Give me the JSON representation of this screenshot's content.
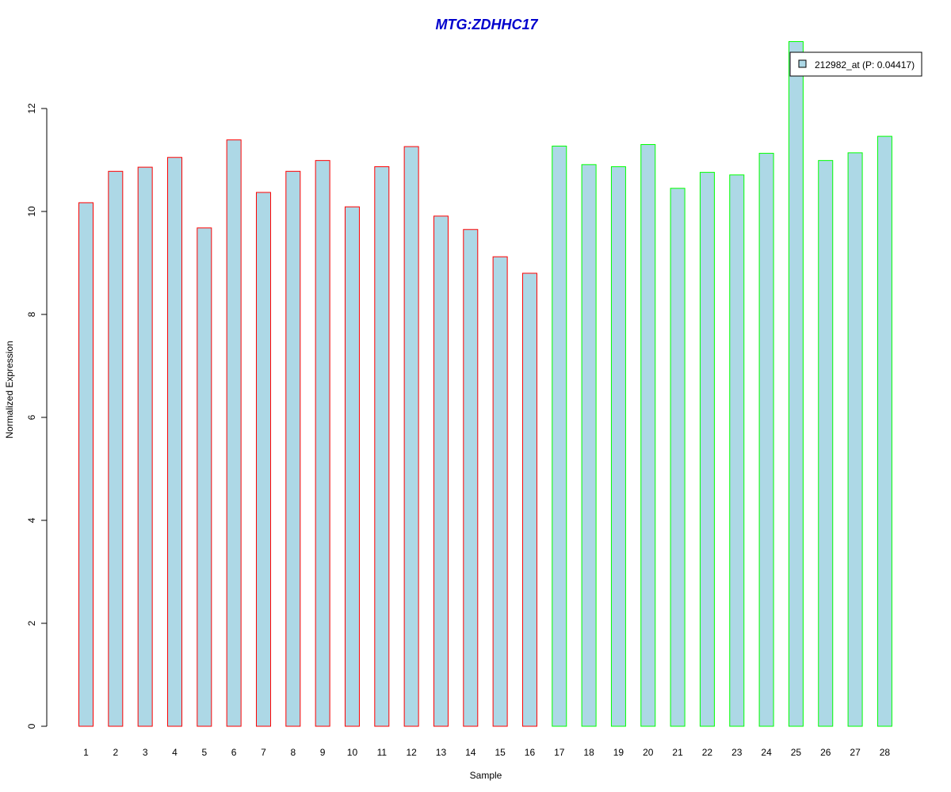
{
  "chart_data": {
    "type": "bar",
    "title": "MTG:ZDHHC17",
    "xlabel": "Sample",
    "ylabel": "Normalized Expression",
    "categories": [
      "1",
      "2",
      "3",
      "4",
      "5",
      "6",
      "7",
      "8",
      "9",
      "10",
      "11",
      "12",
      "13",
      "14",
      "15",
      "16",
      "17",
      "18",
      "19",
      "20",
      "21",
      "22",
      "23",
      "24",
      "25",
      "26",
      "27",
      "28"
    ],
    "series": [
      {
        "name": "212982_at (P: 0.04417)",
        "values": [
          10.17,
          10.78,
          10.86,
          11.05,
          9.68,
          11.39,
          10.37,
          10.78,
          10.99,
          10.09,
          10.87,
          11.26,
          9.91,
          9.65,
          9.12,
          8.8,
          11.27,
          10.91,
          10.87,
          11.3,
          10.45,
          10.76,
          10.71,
          11.13,
          13.3,
          10.99,
          11.14,
          11.46
        ]
      }
    ],
    "yticks": [
      0,
      2,
      4,
      6,
      8,
      10,
      12
    ],
    "ylim": [
      0,
      13.3
    ],
    "grid": false,
    "legend_position": "top-right",
    "colors": {
      "bar_fill": "#add8e6",
      "group1_border": "#ff0000",
      "group2_border": "#00ff00",
      "title": "#0000cd",
      "axis": "#000000"
    },
    "group1_count": 16
  }
}
